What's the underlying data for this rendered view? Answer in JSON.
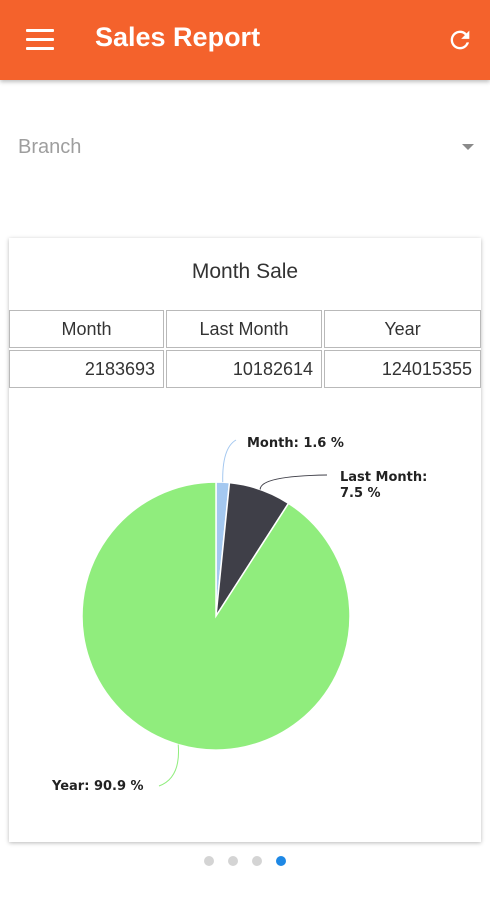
{
  "appbar": {
    "title": "Sales Report",
    "menu_icon": "hamburger-menu-icon",
    "refresh_icon": "refresh-icon",
    "color": "#f4622c"
  },
  "branch_select": {
    "label": "Branch"
  },
  "card": {
    "title": "Month Sale",
    "table": {
      "headers": [
        "Month",
        "Last Month",
        "Year"
      ],
      "values": [
        "2183693",
        "10182614",
        "124015355"
      ]
    }
  },
  "chart_data": {
    "type": "pie",
    "slices": [
      {
        "label": "Month: 1.6 %",
        "name": "Month",
        "value": 1.6,
        "color": "#a4c8f0"
      },
      {
        "label": "Last Month: 7.5 %",
        "name": "Last Month",
        "value": 7.5,
        "color": "#3f3f48"
      },
      {
        "label": "Year: 90.9 %",
        "name": "Year",
        "value": 90.9,
        "color": "#90ed7d"
      }
    ]
  },
  "pager": {
    "count": 4,
    "active_index": 3,
    "active_color": "#1e88e5"
  }
}
